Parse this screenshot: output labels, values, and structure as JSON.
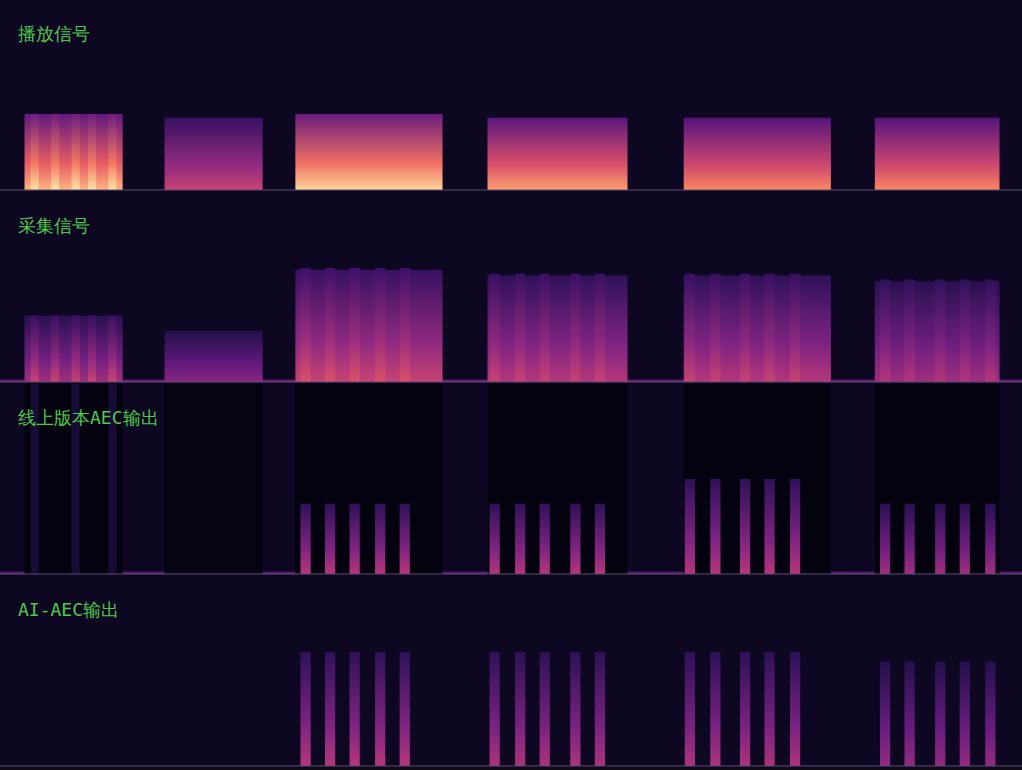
{
  "chart_data": [
    {
      "type": "spectrogram",
      "title": "播放信号",
      "xlim": [
        0,
        100
      ],
      "ylim": [
        0,
        100
      ],
      "tick_labels": false,
      "level_range": [
        0,
        1
      ],
      "floor": 0.06,
      "segments": [
        {
          "start": 2.4,
          "end": 12.0,
          "top": 40,
          "level": 0.85
        },
        {
          "start": 16.1,
          "end": 25.7,
          "top": 38,
          "level": 0.55
        },
        {
          "start": 28.9,
          "end": 43.3,
          "top": 40,
          "level": 0.92
        },
        {
          "start": 47.7,
          "end": 61.4,
          "top": 38,
          "level": 0.8
        },
        {
          "start": 66.9,
          "end": 81.3,
          "top": 38,
          "level": 0.75
        },
        {
          "start": 85.6,
          "end": 97.8,
          "top": 38,
          "level": 0.75
        }
      ],
      "bursts": [
        {
          "start": 3.0,
          "end": 3.8,
          "top": 40,
          "level": 0.95
        },
        {
          "start": 5.0,
          "end": 5.8,
          "top": 40,
          "level": 0.95
        },
        {
          "start": 7.0,
          "end": 7.8,
          "top": 40,
          "level": 0.95
        },
        {
          "start": 8.6,
          "end": 9.4,
          "top": 40,
          "level": 0.95
        },
        {
          "start": 10.6,
          "end": 11.4,
          "top": 40,
          "level": 0.95
        }
      ]
    },
    {
      "type": "spectrogram",
      "title": "采集信号",
      "xlim": [
        0,
        100
      ],
      "ylim": [
        0,
        100
      ],
      "tick_labels": false,
      "level_range": [
        0,
        1
      ],
      "floor": 0.06,
      "segments": [
        {
          "start": 0,
          "end": 100,
          "top": 1.5,
          "level": 0.45
        },
        {
          "start": 2.4,
          "end": 12.0,
          "top": 35,
          "level": 0.45
        },
        {
          "start": 16.1,
          "end": 25.7,
          "top": 27,
          "level": 0.4
        },
        {
          "start": 28.9,
          "end": 43.3,
          "top": 59,
          "level": 0.55
        },
        {
          "start": 47.7,
          "end": 61.4,
          "top": 56,
          "level": 0.5
        },
        {
          "start": 66.9,
          "end": 81.3,
          "top": 56,
          "level": 0.5
        },
        {
          "start": 85.6,
          "end": 97.8,
          "top": 53,
          "level": 0.45
        }
      ],
      "bursts": [
        {
          "start": 3.0,
          "end": 3.8,
          "top": 35,
          "level": 0.55
        },
        {
          "start": 5.0,
          "end": 5.8,
          "top": 35,
          "level": 0.55
        },
        {
          "start": 7.0,
          "end": 7.8,
          "top": 35,
          "level": 0.55
        },
        {
          "start": 8.6,
          "end": 9.4,
          "top": 35,
          "level": 0.55
        },
        {
          "start": 10.6,
          "end": 11.4,
          "top": 35,
          "level": 0.55
        },
        {
          "start": 29.4,
          "end": 30.4,
          "top": 60,
          "level": 0.6
        },
        {
          "start": 31.8,
          "end": 32.8,
          "top": 60,
          "level": 0.6
        },
        {
          "start": 34.2,
          "end": 35.2,
          "top": 60,
          "level": 0.6
        },
        {
          "start": 36.7,
          "end": 37.7,
          "top": 60,
          "level": 0.6
        },
        {
          "start": 39.1,
          "end": 40.1,
          "top": 60,
          "level": 0.6
        },
        {
          "start": 47.9,
          "end": 48.9,
          "top": 57,
          "level": 0.55
        },
        {
          "start": 50.4,
          "end": 51.4,
          "top": 57,
          "level": 0.55
        },
        {
          "start": 52.8,
          "end": 53.8,
          "top": 57,
          "level": 0.55
        },
        {
          "start": 55.8,
          "end": 56.8,
          "top": 57,
          "level": 0.55
        },
        {
          "start": 58.2,
          "end": 59.2,
          "top": 57,
          "level": 0.55
        },
        {
          "start": 67.0,
          "end": 68.0,
          "top": 57,
          "level": 0.55
        },
        {
          "start": 69.5,
          "end": 70.5,
          "top": 57,
          "level": 0.55
        },
        {
          "start": 72.4,
          "end": 73.4,
          "top": 57,
          "level": 0.55
        },
        {
          "start": 74.8,
          "end": 75.8,
          "top": 57,
          "level": 0.55
        },
        {
          "start": 77.3,
          "end": 78.3,
          "top": 57,
          "level": 0.55
        },
        {
          "start": 86.1,
          "end": 87.1,
          "top": 54,
          "level": 0.5
        },
        {
          "start": 88.5,
          "end": 89.5,
          "top": 54,
          "level": 0.5
        },
        {
          "start": 91.5,
          "end": 92.5,
          "top": 54,
          "level": 0.5
        },
        {
          "start": 93.9,
          "end": 94.9,
          "top": 54,
          "level": 0.5
        },
        {
          "start": 96.4,
          "end": 97.4,
          "top": 54,
          "level": 0.5
        }
      ]
    },
    {
      "type": "spectrogram",
      "title": "线上版本AEC输出",
      "xlim": [
        0,
        100
      ],
      "ylim": [
        0,
        100
      ],
      "tick_labels": false,
      "level_range": [
        0,
        1
      ],
      "floor": 0.06,
      "segments": [
        {
          "start": 0,
          "end": 100,
          "top": 1.5,
          "level": 0.4
        },
        {
          "start": 2.4,
          "end": 12.0,
          "top": 100,
          "level": 0.02
        },
        {
          "start": 16.1,
          "end": 25.7,
          "top": 100,
          "level": 0.03
        },
        {
          "start": 28.9,
          "end": 43.3,
          "top": 100,
          "level": 0.02
        },
        {
          "start": 47.7,
          "end": 61.4,
          "top": 100,
          "level": 0.02
        },
        {
          "start": 66.9,
          "end": 81.3,
          "top": 100,
          "level": 0.02
        },
        {
          "start": 85.6,
          "end": 97.8,
          "top": 100,
          "level": 0.02
        },
        {
          "start": 3.0,
          "end": 3.8,
          "top": 100,
          "level": 0.1
        },
        {
          "start": 7.0,
          "end": 7.8,
          "top": 100,
          "level": 0.1
        },
        {
          "start": 10.6,
          "end": 11.4,
          "top": 100,
          "level": 0.1
        }
      ],
      "bursts": [
        {
          "start": 29.4,
          "end": 30.4,
          "top": 37,
          "level": 0.5
        },
        {
          "start": 31.8,
          "end": 32.8,
          "top": 37,
          "level": 0.5
        },
        {
          "start": 34.2,
          "end": 35.2,
          "top": 37,
          "level": 0.5
        },
        {
          "start": 36.7,
          "end": 37.7,
          "top": 37,
          "level": 0.5
        },
        {
          "start": 39.1,
          "end": 40.1,
          "top": 37,
          "level": 0.5
        },
        {
          "start": 47.9,
          "end": 48.9,
          "top": 37,
          "level": 0.5
        },
        {
          "start": 50.4,
          "end": 51.4,
          "top": 37,
          "level": 0.5
        },
        {
          "start": 52.8,
          "end": 53.8,
          "top": 37,
          "level": 0.5
        },
        {
          "start": 55.8,
          "end": 56.8,
          "top": 37,
          "level": 0.5
        },
        {
          "start": 58.2,
          "end": 59.2,
          "top": 37,
          "level": 0.5
        },
        {
          "start": 67.0,
          "end": 68.0,
          "top": 50,
          "level": 0.5
        },
        {
          "start": 69.5,
          "end": 70.5,
          "top": 50,
          "level": 0.5
        },
        {
          "start": 72.4,
          "end": 73.4,
          "top": 50,
          "level": 0.5
        },
        {
          "start": 74.8,
          "end": 75.8,
          "top": 50,
          "level": 0.5
        },
        {
          "start": 77.3,
          "end": 78.3,
          "top": 50,
          "level": 0.5
        },
        {
          "start": 86.1,
          "end": 87.1,
          "top": 37,
          "level": 0.45
        },
        {
          "start": 88.5,
          "end": 89.5,
          "top": 37,
          "level": 0.45
        },
        {
          "start": 91.5,
          "end": 92.5,
          "top": 37,
          "level": 0.45
        },
        {
          "start": 93.9,
          "end": 94.9,
          "top": 37,
          "level": 0.45
        },
        {
          "start": 96.4,
          "end": 97.4,
          "top": 37,
          "level": 0.45
        }
      ]
    },
    {
      "type": "spectrogram",
      "title": "AI-AEC输出",
      "xlim": [
        0,
        100
      ],
      "ylim": [
        0,
        100
      ],
      "tick_labels": false,
      "level_range": [
        0,
        1
      ],
      "floor": 0.06,
      "segments": [],
      "bursts": [
        {
          "start": 29.4,
          "end": 30.4,
          "top": 60,
          "level": 0.5
        },
        {
          "start": 31.8,
          "end": 32.8,
          "top": 60,
          "level": 0.5
        },
        {
          "start": 34.2,
          "end": 35.2,
          "top": 60,
          "level": 0.5
        },
        {
          "start": 36.7,
          "end": 37.7,
          "top": 60,
          "level": 0.5
        },
        {
          "start": 39.1,
          "end": 40.1,
          "top": 60,
          "level": 0.5
        },
        {
          "start": 47.9,
          "end": 48.9,
          "top": 60,
          "level": 0.48
        },
        {
          "start": 50.4,
          "end": 51.4,
          "top": 60,
          "level": 0.48
        },
        {
          "start": 52.8,
          "end": 53.8,
          "top": 60,
          "level": 0.48
        },
        {
          "start": 55.8,
          "end": 56.8,
          "top": 60,
          "level": 0.48
        },
        {
          "start": 58.2,
          "end": 59.2,
          "top": 60,
          "level": 0.48
        },
        {
          "start": 67.0,
          "end": 68.0,
          "top": 60,
          "level": 0.48
        },
        {
          "start": 69.5,
          "end": 70.5,
          "top": 60,
          "level": 0.48
        },
        {
          "start": 72.4,
          "end": 73.4,
          "top": 60,
          "level": 0.48
        },
        {
          "start": 74.8,
          "end": 75.8,
          "top": 60,
          "level": 0.48
        },
        {
          "start": 77.3,
          "end": 78.3,
          "top": 60,
          "level": 0.48
        },
        {
          "start": 86.1,
          "end": 87.1,
          "top": 55,
          "level": 0.42
        },
        {
          "start": 88.5,
          "end": 89.5,
          "top": 55,
          "level": 0.42
        },
        {
          "start": 91.5,
          "end": 92.5,
          "top": 55,
          "level": 0.42
        },
        {
          "start": 93.9,
          "end": 94.9,
          "top": 55,
          "level": 0.42
        },
        {
          "start": 96.4,
          "end": 97.4,
          "top": 55,
          "level": 0.42
        }
      ]
    }
  ]
}
